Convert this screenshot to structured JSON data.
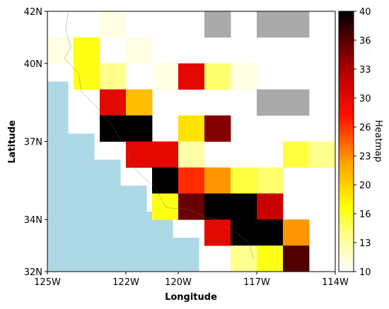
{
  "chart_data": {
    "type": "heatmap",
    "xlabel": "Longitude",
    "ylabel": "Latitude",
    "colorbar_label": "Heatmap",
    "xlim": [
      -125,
      -114
    ],
    "ylim": [
      32,
      42
    ],
    "x_ticks": [
      {
        "value": -125,
        "label": "125W"
      },
      {
        "value": -122,
        "label": "122W"
      },
      {
        "value": -120,
        "label": "120W"
      },
      {
        "value": -117,
        "label": "117W"
      },
      {
        "value": -114,
        "label": "114W"
      }
    ],
    "y_ticks": [
      {
        "value": 32,
        "label": "32N"
      },
      {
        "value": 34,
        "label": "34N"
      },
      {
        "value": 37,
        "label": "37N"
      },
      {
        "value": 40,
        "label": "40N"
      },
      {
        "value": 42,
        "label": "42N"
      }
    ],
    "colorbar": {
      "min": 10,
      "max": 40,
      "colormap": "hot_r",
      "ticks": [
        "10",
        "13",
        "16",
        "20",
        "23",
        "26",
        "30",
        "33",
        "36",
        "40"
      ]
    },
    "missing_color": "#aaaaaa",
    "ocean_color": "#add8e6",
    "cell_size_deg": 1,
    "cells": [
      {
        "lon": -123,
        "lat": 41,
        "value": 11
      },
      {
        "lon": -119,
        "lat": 41,
        "value": null
      },
      {
        "lon": -117,
        "lat": 41,
        "value": null
      },
      {
        "lon": -116,
        "lat": 41,
        "value": null
      },
      {
        "lon": -125,
        "lat": 40,
        "value": 11
      },
      {
        "lon": -124,
        "lat": 40,
        "value": 17
      },
      {
        "lon": -122,
        "lat": 40,
        "value": 11
      },
      {
        "lon": -124,
        "lat": 39,
        "value": 17
      },
      {
        "lon": -123,
        "lat": 39,
        "value": 14
      },
      {
        "lon": -121,
        "lat": 39,
        "value": 11
      },
      {
        "lon": -120,
        "lat": 39,
        "value": 30
      },
      {
        "lon": -119,
        "lat": 39,
        "value": 15
      },
      {
        "lon": -118,
        "lat": 39,
        "value": 11
      },
      {
        "lon": -123,
        "lat": 38,
        "value": 30
      },
      {
        "lon": -122,
        "lat": 38,
        "value": 21
      },
      {
        "lon": -117,
        "lat": 38,
        "value": null
      },
      {
        "lon": -116,
        "lat": 38,
        "value": null
      },
      {
        "lon": -123,
        "lat": 37,
        "value": 40
      },
      {
        "lon": -122,
        "lat": 37,
        "value": 40
      },
      {
        "lon": -120,
        "lat": 37,
        "value": 19
      },
      {
        "lon": -119,
        "lat": 37,
        "value": 35
      },
      {
        "lon": -122,
        "lat": 36,
        "value": 30
      },
      {
        "lon": -121,
        "lat": 36,
        "value": 30
      },
      {
        "lon": -120,
        "lat": 36,
        "value": 13
      },
      {
        "lon": -116,
        "lat": 36,
        "value": 16
      },
      {
        "lon": -115,
        "lat": 36,
        "value": 14
      },
      {
        "lon": -121,
        "lat": 35,
        "value": 40
      },
      {
        "lon": -120,
        "lat": 35,
        "value": 27
      },
      {
        "lon": -119,
        "lat": 35,
        "value": 23
      },
      {
        "lon": -118,
        "lat": 35,
        "value": 16
      },
      {
        "lon": -117,
        "lat": 35,
        "value": 15
      },
      {
        "lon": -121,
        "lat": 34,
        "value": 17
      },
      {
        "lon": -120,
        "lat": 34,
        "value": 36
      },
      {
        "lon": -119,
        "lat": 34,
        "value": 40
      },
      {
        "lon": -118,
        "lat": 34,
        "value": 40
      },
      {
        "lon": -117,
        "lat": 34,
        "value": 32
      },
      {
        "lon": -119,
        "lat": 33,
        "value": 30
      },
      {
        "lon": -118,
        "lat": 33,
        "value": 40
      },
      {
        "lon": -117,
        "lat": 33,
        "value": 40
      },
      {
        "lon": -116,
        "lat": 33,
        "value": 23
      },
      {
        "lon": -118,
        "lat": 32,
        "value": 14
      },
      {
        "lon": -117,
        "lat": 32,
        "value": 17
      },
      {
        "lon": -116,
        "lat": 32,
        "value": 37
      }
    ],
    "ocean_polygon": [
      [
        -125,
        32
      ],
      [
        -125,
        39.3
      ],
      [
        -124.2,
        39.3
      ],
      [
        -124.2,
        37.3
      ],
      [
        -123.2,
        37.3
      ],
      [
        -123.2,
        36.3
      ],
      [
        -122.2,
        36.3
      ],
      [
        -122.2,
        35.3
      ],
      [
        -121.2,
        35.3
      ],
      [
        -121.2,
        34.3
      ],
      [
        -120.2,
        34.3
      ],
      [
        -120.2,
        33.3
      ],
      [
        -119.2,
        33.3
      ],
      [
        -119.2,
        32
      ]
    ],
    "coastline": [
      [
        -124.2,
        42
      ],
      [
        -124.3,
        41.3
      ],
      [
        -124.1,
        40.6
      ],
      [
        -124.35,
        40.2
      ],
      [
        -123.8,
        39.6
      ],
      [
        -123.7,
        38.9
      ],
      [
        -123.1,
        38.3
      ],
      [
        -122.8,
        37.9
      ],
      [
        -122.5,
        37.6
      ],
      [
        -122.3,
        37.2
      ],
      [
        -122.0,
        36.9
      ],
      [
        -121.85,
        36.6
      ],
      [
        -121.9,
        36.2
      ],
      [
        -121.3,
        35.6
      ],
      [
        -120.85,
        35.2
      ],
      [
        -120.6,
        34.7
      ],
      [
        -120.45,
        34.45
      ],
      [
        -119.6,
        34.4
      ],
      [
        -119.0,
        34.1
      ],
      [
        -118.5,
        34.0
      ],
      [
        -118.3,
        33.75
      ],
      [
        -117.9,
        33.6
      ],
      [
        -117.3,
        33.1
      ],
      [
        -117.15,
        32.6
      ],
      [
        -117.1,
        32.5
      ]
    ]
  }
}
